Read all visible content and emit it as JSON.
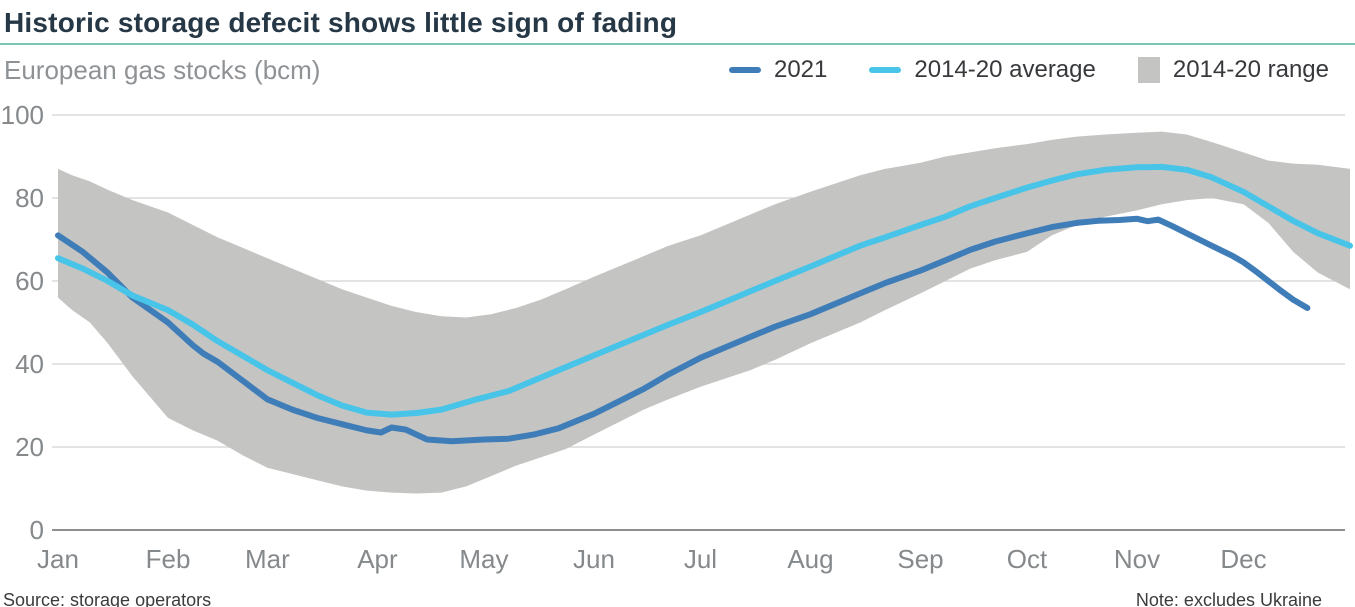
{
  "header": {
    "title": "Historic storage defecit shows little sign of fading",
    "subtitle": "European gas stocks (bcm)"
  },
  "legend": {
    "items": [
      {
        "label": "2021",
        "swatch": "line",
        "color": "#3f7db8"
      },
      {
        "label": "2014-20 average",
        "swatch": "line",
        "color": "#48c4e8"
      },
      {
        "label": "2014-20 range",
        "swatch": "box",
        "color": "#c4c4c2"
      }
    ]
  },
  "footer": {
    "source": "Source: storage operators",
    "note": "Note: excludes Ukraine"
  },
  "chart_data": {
    "type": "line",
    "title": "Historic storage defecit shows little sign of fading",
    "subtitle_unit": "European gas stocks (bcm)",
    "x_unit": "day-of-year",
    "ylim": [
      0,
      100
    ],
    "yticks": [
      0,
      20,
      40,
      60,
      80,
      100
    ],
    "grid": "horizontal-only",
    "legend_position": "top-right",
    "months": [
      "Jan",
      "Feb",
      "Mar",
      "Apr",
      "May",
      "Jun",
      "Jul",
      "Aug",
      "Sep",
      "Oct",
      "Nov",
      "Dec"
    ],
    "month_start_days": [
      0,
      31,
      59,
      90,
      120,
      151,
      181,
      212,
      243,
      273,
      304,
      334
    ],
    "colors": {
      "line_2021": "#3f7db8",
      "line_avg": "#48c4e8",
      "range": "#c4c4c2",
      "grid": "#d2d2d2",
      "axis_zero": "#8f8f8f",
      "axis_text": "#85898b"
    },
    "series": [
      {
        "name": "2021",
        "points_day_value": [
          [
            0,
            71
          ],
          [
            7,
            67
          ],
          [
            14,
            62
          ],
          [
            21,
            56
          ],
          [
            31,
            50
          ],
          [
            38,
            44.5
          ],
          [
            41,
            42.5
          ],
          [
            45,
            40.5
          ],
          [
            52,
            36
          ],
          [
            59,
            31.5
          ],
          [
            66,
            29
          ],
          [
            73,
            27
          ],
          [
            80,
            25.5
          ],
          [
            87,
            24
          ],
          [
            91,
            23.5
          ],
          [
            94,
            24.7
          ],
          [
            98,
            24.2
          ],
          [
            104,
            21.8
          ],
          [
            111,
            21.4
          ],
          [
            120,
            21.8
          ],
          [
            127,
            22
          ],
          [
            134,
            23
          ],
          [
            141,
            24.5
          ],
          [
            151,
            28
          ],
          [
            158,
            31
          ],
          [
            165,
            34
          ],
          [
            172,
            37.5
          ],
          [
            181,
            41.5
          ],
          [
            188,
            44
          ],
          [
            195,
            46.5
          ],
          [
            202,
            49
          ],
          [
            212,
            52
          ],
          [
            219,
            54.5
          ],
          [
            226,
            57
          ],
          [
            233,
            59.5
          ],
          [
            243,
            62.5
          ],
          [
            250,
            65
          ],
          [
            257,
            67.5
          ],
          [
            264,
            69.5
          ],
          [
            273,
            71.5
          ],
          [
            280,
            73
          ],
          [
            287,
            74
          ],
          [
            293,
            74.5
          ],
          [
            299,
            74.7
          ],
          [
            304,
            75
          ],
          [
            307,
            74.4
          ],
          [
            310,
            74.8
          ],
          [
            314,
            73.2
          ],
          [
            318,
            71.5
          ],
          [
            325,
            68.5
          ],
          [
            331,
            66
          ],
          [
            334,
            64.5
          ],
          [
            338,
            62
          ],
          [
            344,
            58
          ],
          [
            348,
            55.5
          ],
          [
            352,
            53.5
          ]
        ]
      },
      {
        "name": "2014-20 average",
        "points_day_value": [
          [
            0,
            65.5
          ],
          [
            7,
            63
          ],
          [
            14,
            60
          ],
          [
            21,
            56.5
          ],
          [
            31,
            53
          ],
          [
            38,
            49.5
          ],
          [
            45,
            45.5
          ],
          [
            52,
            42
          ],
          [
            59,
            38.5
          ],
          [
            66,
            35.5
          ],
          [
            73,
            32.5
          ],
          [
            80,
            30
          ],
          [
            87,
            28.3
          ],
          [
            94,
            27.8
          ],
          [
            101,
            28.2
          ],
          [
            108,
            29
          ],
          [
            118,
            31.5
          ],
          [
            127,
            33.5
          ],
          [
            134,
            36
          ],
          [
            141,
            38.5
          ],
          [
            148,
            41
          ],
          [
            155,
            43.5
          ],
          [
            165,
            47
          ],
          [
            172,
            49.5
          ],
          [
            181,
            52.5
          ],
          [
            188,
            55
          ],
          [
            195,
            57.5
          ],
          [
            202,
            60
          ],
          [
            212,
            63.5
          ],
          [
            219,
            66
          ],
          [
            226,
            68.5
          ],
          [
            233,
            70.5
          ],
          [
            243,
            73.5
          ],
          [
            250,
            75.5
          ],
          [
            257,
            78
          ],
          [
            264,
            80
          ],
          [
            273,
            82.5
          ],
          [
            280,
            84.2
          ],
          [
            287,
            85.7
          ],
          [
            295,
            86.8
          ],
          [
            304,
            87.4
          ],
          [
            311,
            87.5
          ],
          [
            318,
            86.8
          ],
          [
            325,
            85
          ],
          [
            334,
            81.5
          ],
          [
            341,
            78
          ],
          [
            348,
            74.5
          ],
          [
            355,
            71.5
          ],
          [
            364,
            68.5
          ]
        ]
      }
    ],
    "range_band": {
      "name": "2014-20 range",
      "points_day_low_high": [
        [
          0,
          56,
          87
        ],
        [
          4,
          53,
          85.5
        ],
        [
          9,
          50,
          84
        ],
        [
          14,
          45,
          82
        ],
        [
          21,
          37,
          79.5
        ],
        [
          31,
          27,
          76.5
        ],
        [
          38,
          24,
          73.5
        ],
        [
          45,
          21.5,
          70.5
        ],
        [
          52,
          18,
          68
        ],
        [
          59,
          15,
          65.5
        ],
        [
          66,
          13.5,
          63
        ],
        [
          73,
          12,
          60.5
        ],
        [
          80,
          10.5,
          58
        ],
        [
          87,
          9.5,
          56
        ],
        [
          94,
          9,
          54
        ],
        [
          101,
          8.8,
          52.5
        ],
        [
          108,
          9,
          51.5
        ],
        [
          115,
          10.5,
          51.2
        ],
        [
          122,
          13,
          52
        ],
        [
          129,
          15.5,
          53.5
        ],
        [
          136,
          17.5,
          55.5
        ],
        [
          143,
          19.5,
          58
        ],
        [
          151,
          23,
          61
        ],
        [
          158,
          26,
          63.5
        ],
        [
          165,
          29,
          66
        ],
        [
          172,
          31.5,
          68.5
        ],
        [
          181,
          34.5,
          71
        ],
        [
          188,
          36.5,
          73.5
        ],
        [
          195,
          38.5,
          76
        ],
        [
          202,
          41,
          78.5
        ],
        [
          212,
          45,
          81.5
        ],
        [
          219,
          47.5,
          83.5
        ],
        [
          226,
          50,
          85.5
        ],
        [
          233,
          53,
          87
        ],
        [
          243,
          57,
          88.5
        ],
        [
          250,
          60,
          90
        ],
        [
          257,
          63,
          91
        ],
        [
          264,
          65,
          92
        ],
        [
          273,
          67,
          93
        ],
        [
          280,
          71,
          94
        ],
        [
          287,
          73.5,
          94.8
        ],
        [
          295,
          75.5,
          95.3
        ],
        [
          304,
          77,
          95.7
        ],
        [
          311,
          78.5,
          96
        ],
        [
          318,
          79.5,
          95.3
        ],
        [
          325,
          80,
          93.5
        ],
        [
          334,
          78.5,
          91
        ],
        [
          341,
          74,
          89
        ],
        [
          348,
          67,
          88.3
        ],
        [
          355,
          62,
          88
        ],
        [
          364,
          58,
          87
        ]
      ]
    }
  }
}
